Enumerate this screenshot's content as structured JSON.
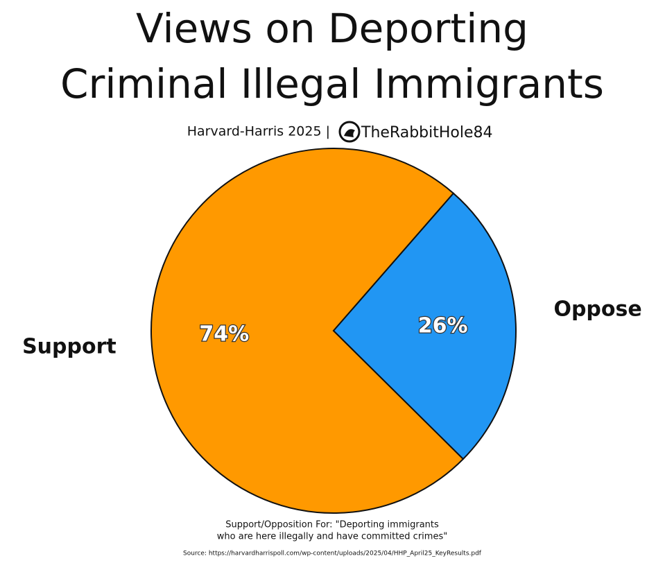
{
  "chart_data": {
    "type": "pie",
    "title": [
      "Views on Deporting",
      "Criminal Illegal Immigrants"
    ],
    "subtitle": "Harvard-Harris 2025 |",
    "author": "TheRabbitHole84",
    "categories": [
      "Support",
      "Oppose"
    ],
    "values": [
      74,
      26
    ],
    "value_labels": [
      "74%",
      "26%"
    ],
    "colors": [
      "#ff9900",
      "#2196f3"
    ],
    "note": [
      "Support/Opposition For: \"Deporting immigrants",
      "who are here illegally and have committed crimes\""
    ],
    "source": "Source: https://harvardharrispoll.com/wp-content/uploads/2025/04/HHP_April25_KeyResults.pdf"
  }
}
